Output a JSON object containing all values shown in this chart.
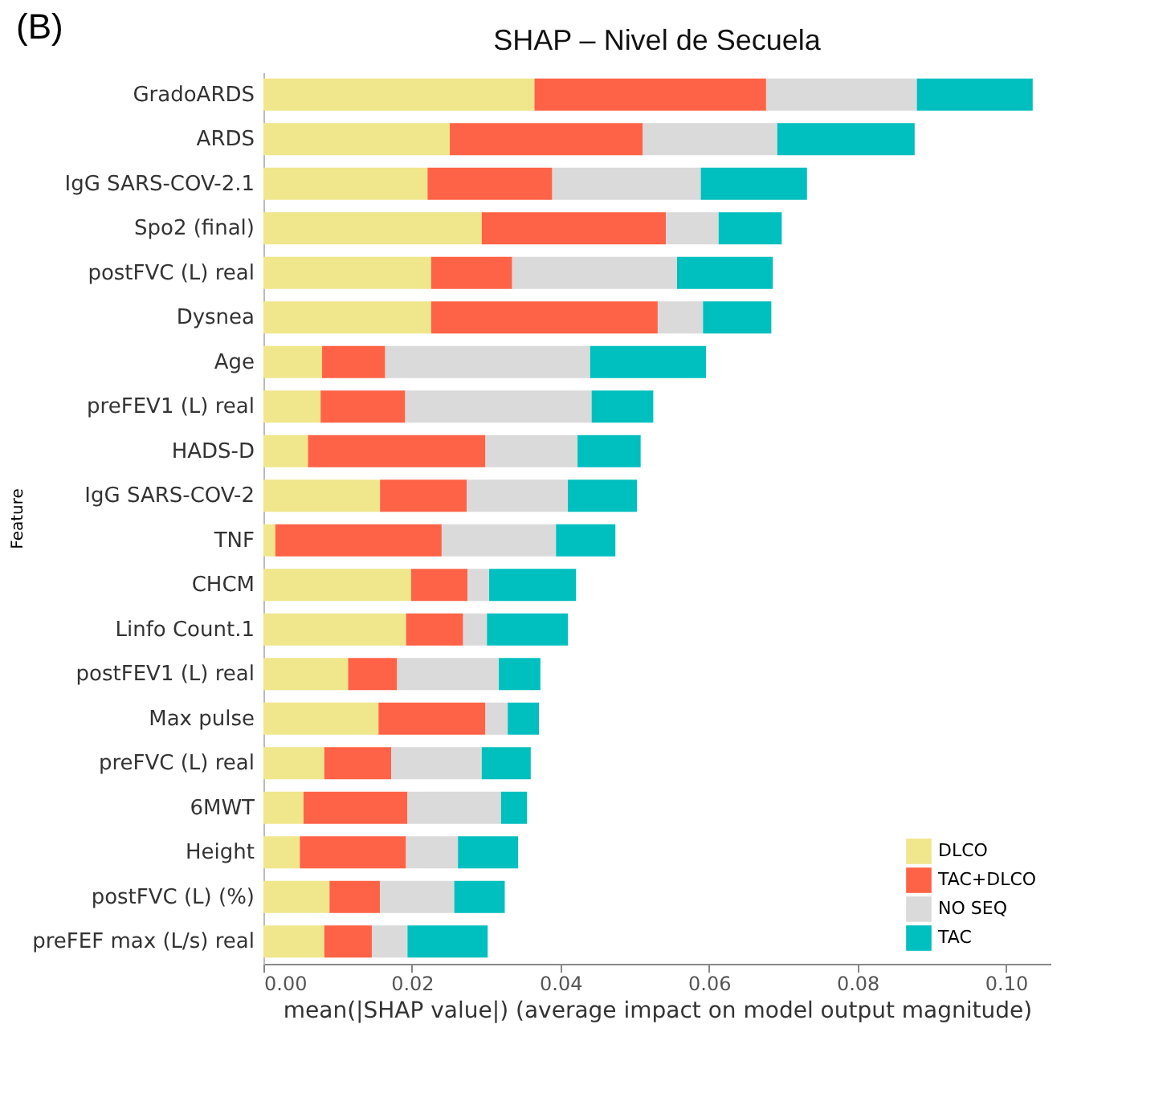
{
  "chart_data": {
    "type": "bar",
    "orientation": "horizontal",
    "stacked": true,
    "title": "SHAP – Nivel de Secuela",
    "xlabel": "mean(|SHAP value|) (average impact on model output magnitude)",
    "ylabel": "Feature",
    "annotations": [
      "(B)"
    ],
    "categories": [
      "GradoARDS",
      "ARDS",
      "IgG SARS-COV-2.1",
      "Spo2 (final)",
      "postFVC (L) real",
      "Dysnea",
      "Age",
      "preFEV1 (L) real",
      "HADS-D",
      "IgG SARS-COV-2",
      "TNF",
      "CHCM",
      "Linfo Count.1",
      "postFEV1 (L) real",
      "Max pulse",
      "preFVC (L) real",
      "6MWT",
      "Height",
      "postFVC (L) (%)",
      "preFEF max (L/s) real"
    ],
    "series": [
      {
        "name": "DLCO",
        "color": "#f0e68c",
        "values": [
          0.0365,
          0.0251,
          0.0221,
          0.0294,
          0.0226,
          0.0226,
          0.0079,
          0.0077,
          0.006,
          0.0157,
          0.0016,
          0.0199,
          0.0192,
          0.0114,
          0.0155,
          0.0082,
          0.0054,
          0.0049,
          0.0089,
          0.0082
        ]
      },
      {
        "name": "TAC+DLCO",
        "color": "#ff6347",
        "values": [
          0.0312,
          0.026,
          0.0168,
          0.0248,
          0.0109,
          0.0305,
          0.0085,
          0.0114,
          0.0239,
          0.0117,
          0.0224,
          0.0076,
          0.0077,
          0.0066,
          0.0144,
          0.009,
          0.014,
          0.0143,
          0.0068,
          0.0064
        ]
      },
      {
        "name": "NO SEQ",
        "color": "#dadada",
        "values": [
          0.0203,
          0.0181,
          0.02,
          0.0071,
          0.0222,
          0.0061,
          0.0276,
          0.0251,
          0.0124,
          0.0136,
          0.0154,
          0.0029,
          0.0032,
          0.0137,
          0.003,
          0.0122,
          0.0126,
          0.007,
          0.01,
          0.0048
        ]
      },
      {
        "name": "TAC",
        "color": "#00bfbf",
        "values": [
          0.0156,
          0.0185,
          0.0143,
          0.0085,
          0.0129,
          0.0092,
          0.0156,
          0.0083,
          0.0085,
          0.0093,
          0.008,
          0.0117,
          0.0109,
          0.0056,
          0.0042,
          0.0066,
          0.0035,
          0.0081,
          0.0068,
          0.0108
        ]
      }
    ],
    "xlim": [
      0,
      0.106
    ],
    "xticks": [
      {
        "value": 0,
        "label": "0.00"
      },
      {
        "value": 0.02,
        "label": "0.02"
      },
      {
        "value": 0.04,
        "label": "0.04"
      },
      {
        "value": 0.06,
        "label": "0.06"
      },
      {
        "value": 0.08,
        "label": "0.08"
      },
      {
        "value": 0.1,
        "label": "0.10"
      }
    ],
    "grid": false,
    "legend": "bottom right"
  }
}
